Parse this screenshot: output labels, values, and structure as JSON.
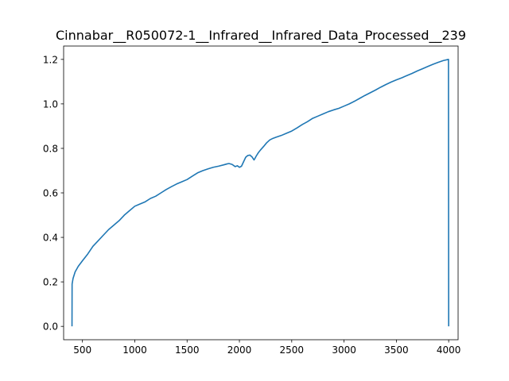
{
  "chart_data": {
    "type": "line",
    "title": "Cinnabar__R050072-1__Infrared__Infrared_Data_Processed__239",
    "xlabel": "",
    "ylabel": "",
    "xlim": [
      320,
      4090
    ],
    "ylim": [
      -0.06,
      1.26
    ],
    "x_ticks": [
      500,
      1000,
      1500,
      2000,
      2500,
      3000,
      3500,
      4000
    ],
    "y_ticks": [
      0.0,
      0.2,
      0.4,
      0.6,
      0.8,
      1.0,
      1.2
    ],
    "x_tick_labels": [
      "500",
      "1000",
      "1500",
      "2000",
      "2500",
      "3000",
      "3500",
      "4000"
    ],
    "y_tick_labels": [
      "0.0",
      "0.2",
      "0.4",
      "0.6",
      "0.8",
      "1.0",
      "1.2"
    ],
    "grid": false,
    "series_color": "#1f77b4",
    "series": [
      {
        "name": "",
        "x": [
          400,
          401,
          410,
          430,
          460,
          500,
          550,
          600,
          650,
          700,
          750,
          800,
          850,
          900,
          950,
          1000,
          1050,
          1100,
          1150,
          1200,
          1250,
          1300,
          1350,
          1400,
          1450,
          1500,
          1550,
          1600,
          1650,
          1700,
          1750,
          1800,
          1850,
          1880,
          1900,
          1930,
          1960,
          1980,
          2000,
          2020,
          2040,
          2060,
          2080,
          2100,
          2120,
          2140,
          2150,
          2160,
          2180,
          2200,
          2230,
          2260,
          2290,
          2320,
          2350,
          2400,
          2450,
          2500,
          2550,
          2600,
          2650,
          2700,
          2750,
          2800,
          2850,
          2900,
          2950,
          3000,
          3050,
          3100,
          3150,
          3200,
          3250,
          3300,
          3350,
          3400,
          3450,
          3500,
          3550,
          3600,
          3650,
          3700,
          3750,
          3800,
          3850,
          3900,
          3950,
          3998,
          4000
        ],
        "values": [
          0.0,
          0.19,
          0.215,
          0.245,
          0.27,
          0.295,
          0.325,
          0.36,
          0.385,
          0.41,
          0.435,
          0.455,
          0.475,
          0.5,
          0.52,
          0.54,
          0.55,
          0.56,
          0.575,
          0.585,
          0.6,
          0.615,
          0.628,
          0.64,
          0.65,
          0.66,
          0.675,
          0.69,
          0.7,
          0.708,
          0.715,
          0.72,
          0.726,
          0.73,
          0.732,
          0.728,
          0.718,
          0.722,
          0.715,
          0.72,
          0.74,
          0.76,
          0.768,
          0.77,
          0.762,
          0.748,
          0.756,
          0.765,
          0.78,
          0.792,
          0.808,
          0.825,
          0.838,
          0.845,
          0.85,
          0.858,
          0.868,
          0.878,
          0.892,
          0.907,
          0.92,
          0.935,
          0.945,
          0.955,
          0.965,
          0.973,
          0.98,
          0.99,
          1.0,
          1.012,
          1.025,
          1.038,
          1.05,
          1.062,
          1.075,
          1.087,
          1.098,
          1.108,
          1.117,
          1.127,
          1.137,
          1.148,
          1.158,
          1.168,
          1.178,
          1.187,
          1.195,
          1.2,
          0.0
        ]
      }
    ]
  }
}
